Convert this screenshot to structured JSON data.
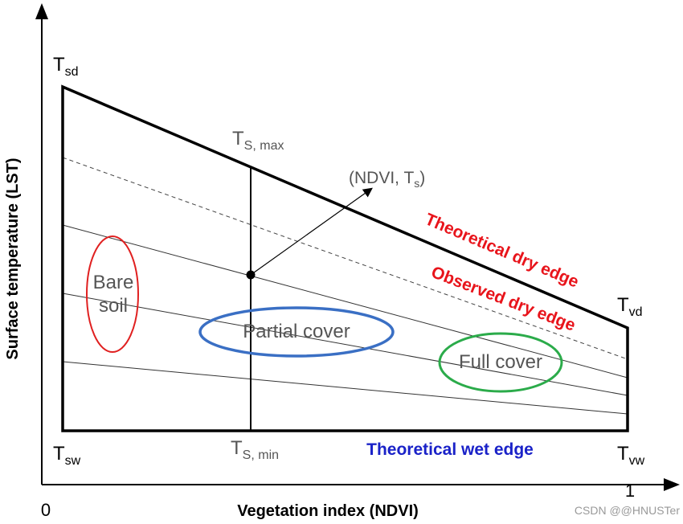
{
  "axes": {
    "y_label": "Surface temperature (LST)",
    "x_label": "Vegetation index (NDVI)",
    "x_min_label": "0",
    "x_max_label": "1"
  },
  "corners": {
    "top_left": {
      "main": "T",
      "sub": "sd"
    },
    "top_right": {
      "main": "T",
      "sub": "vd"
    },
    "bottom_left": {
      "main": "T",
      "sub": "sw"
    },
    "bottom_right": {
      "main": "T",
      "sub": "vw"
    }
  },
  "vertical": {
    "top": {
      "main": "T",
      "sub": "S, max"
    },
    "bottom": {
      "main": "T",
      "sub": "S, min"
    }
  },
  "point": {
    "open": "(NDVI, T",
    "sub": "s",
    "close": ")"
  },
  "edges": {
    "theoretical_dry": "Theoretical dry edge",
    "observed_dry": "Observed dry edge",
    "theoretical_wet": "Theoretical wet edge"
  },
  "regions": {
    "bare_soil": [
      "Bare",
      "soil"
    ],
    "partial": "Partial cover",
    "full": "Full cover"
  },
  "watermark": "CSDN @@HNUSTer"
}
